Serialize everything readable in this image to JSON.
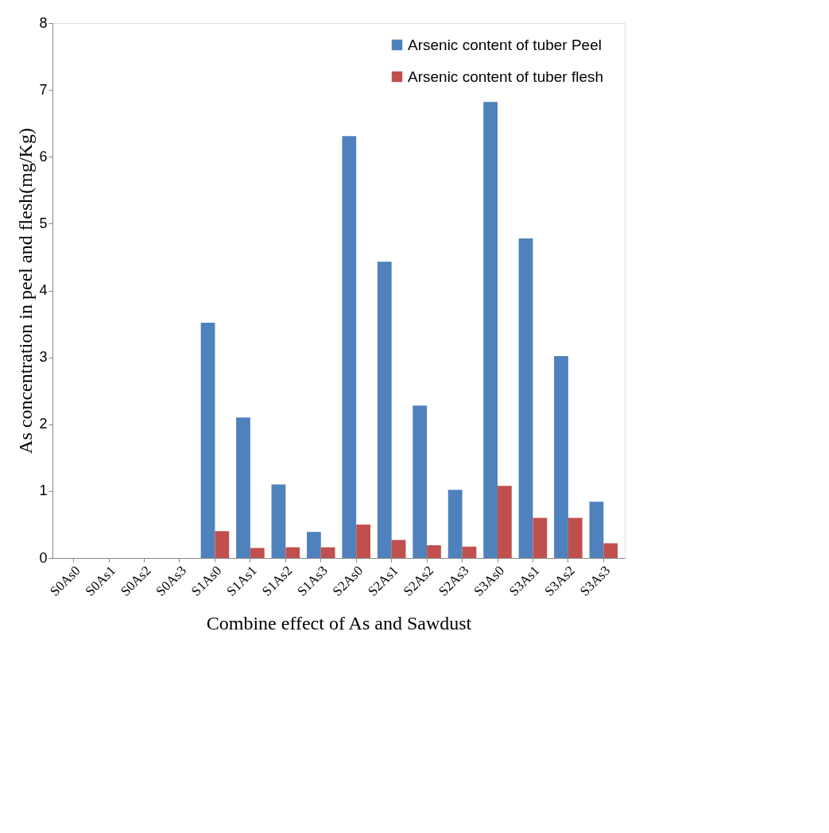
{
  "chart_data": {
    "type": "bar",
    "xlabel": "Combine effect of As and Sawdust",
    "ylabel": "As concentration in peel and flesh(mg/Kg)",
    "categories": [
      "S0As0",
      "S0As1",
      "S0As2",
      "S0As3",
      "S1As0",
      "S1As1",
      "S1As2",
      "S1As3",
      "S2As0",
      "S2As1",
      "S2As2",
      "S2As3",
      "S3As0",
      "S3As1",
      "S3As2",
      "S3As3"
    ],
    "series": [
      {
        "name": "Arsenic content of tuber   Peel",
        "color": "#4f81bd",
        "values": [
          0,
          0,
          0,
          0,
          3.52,
          2.1,
          1.1,
          0.39,
          6.31,
          4.43,
          2.28,
          1.02,
          6.82,
          4.78,
          3.02,
          0.84
        ]
      },
      {
        "name": "Arsenic content of tuber flesh",
        "color": "#c0504d",
        "values": [
          0,
          0,
          0,
          0,
          0.4,
          0.15,
          0.16,
          0.16,
          0.5,
          0.27,
          0.19,
          0.17,
          1.08,
          0.6,
          0.6,
          0.22
        ]
      }
    ],
    "ylim": [
      0,
      8
    ],
    "yticks": [
      0,
      1,
      2,
      3,
      4,
      5,
      6,
      7,
      8
    ],
    "grid": false,
    "legend": "top right"
  }
}
